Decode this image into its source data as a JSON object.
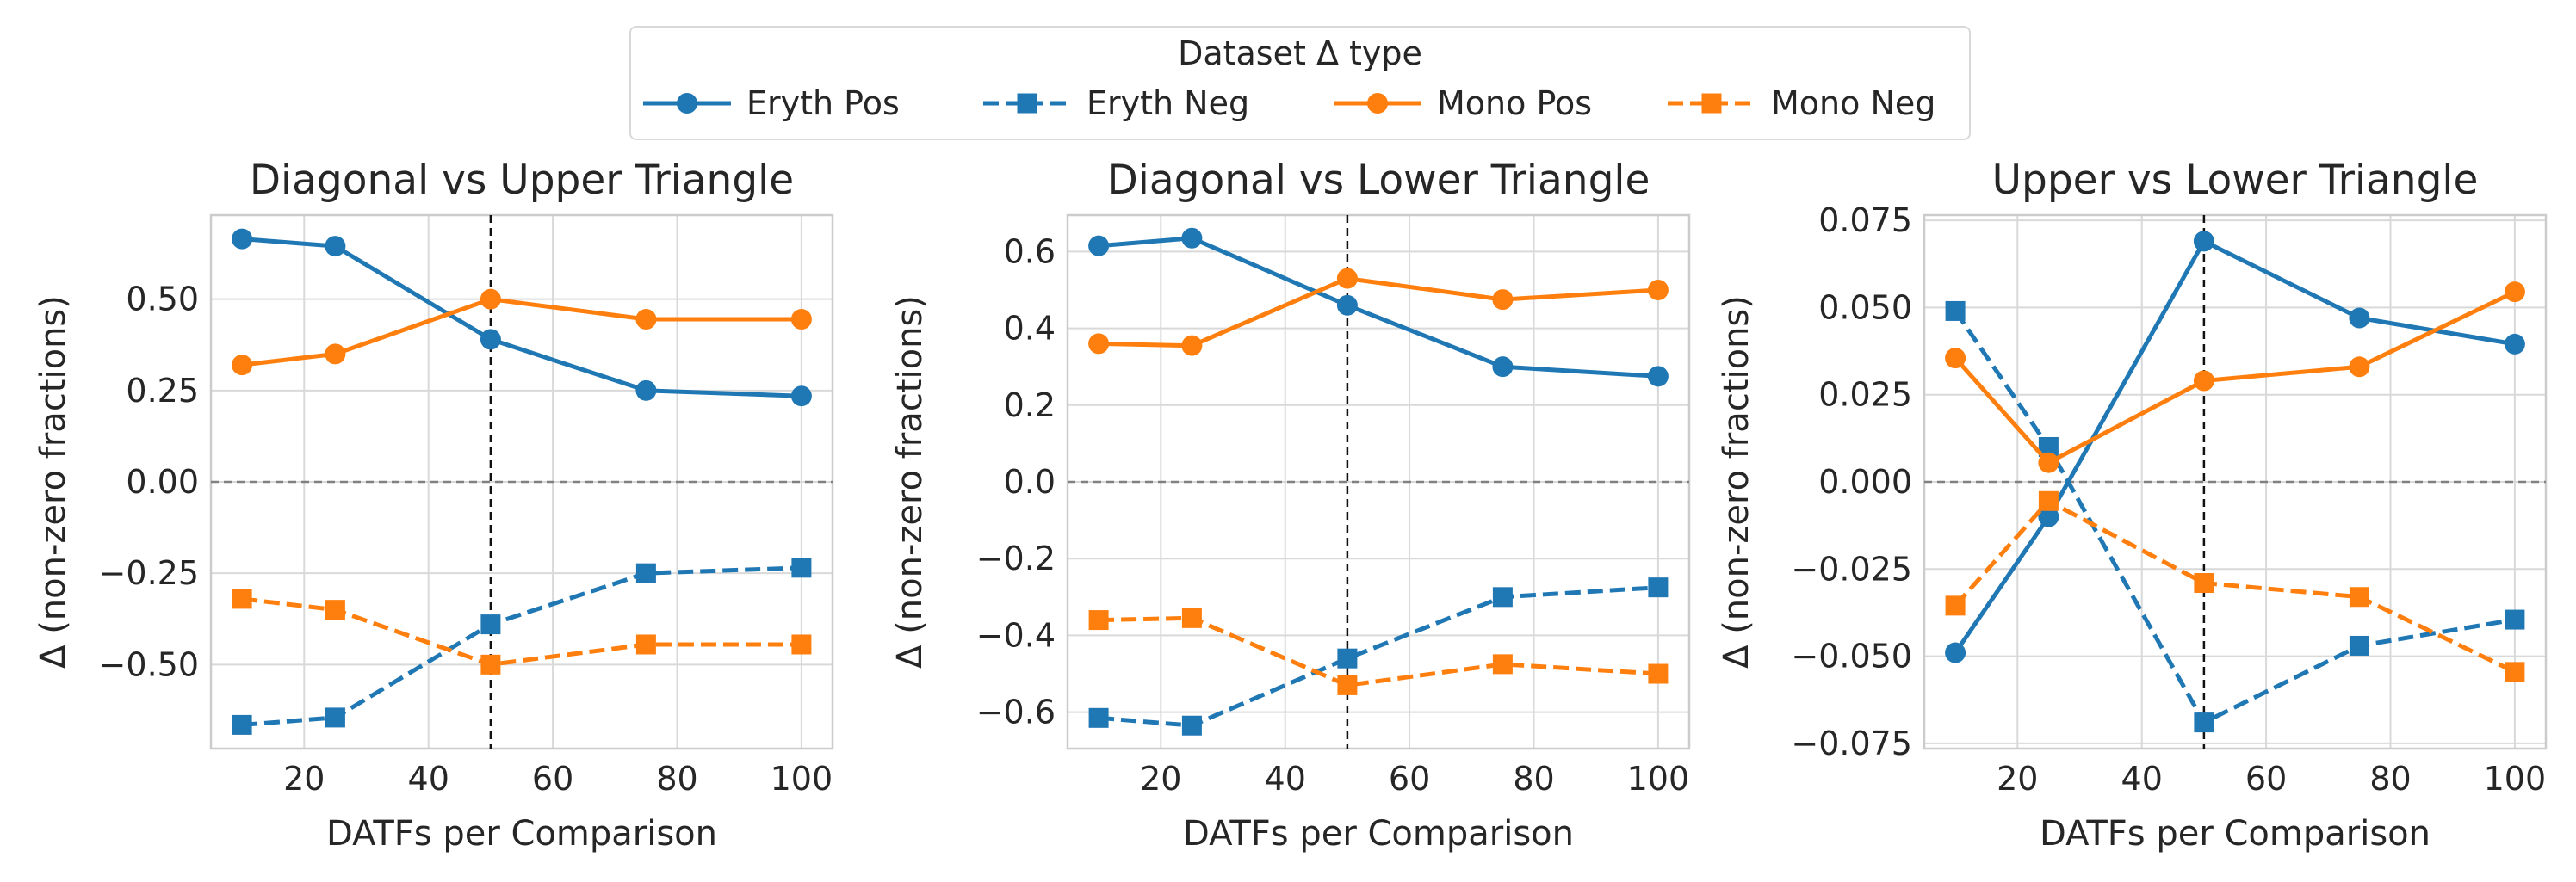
{
  "legend": {
    "title": "Dataset Δ type",
    "entries": [
      {
        "label": "Eryth Pos",
        "color": "#1f77b4",
        "marker": "circle",
        "dash": "solid"
      },
      {
        "label": "Eryth Neg",
        "color": "#1f77b4",
        "marker": "square",
        "dash": "dashed"
      },
      {
        "label": "Mono Pos",
        "color": "#ff7f0e",
        "marker": "circle",
        "dash": "solid"
      },
      {
        "label": "Mono Neg",
        "color": "#ff7f0e",
        "marker": "square",
        "dash": "dashed"
      }
    ]
  },
  "chart_data": [
    {
      "type": "line",
      "title": "Diagonal vs Upper Triangle",
      "xlabel": "DATFs per Comparison",
      "ylabel": "Δ (non-zero fractions)",
      "x": [
        10,
        25,
        50,
        75,
        100
      ],
      "xlim": [
        5,
        105
      ],
      "ylim": [
        -0.73,
        0.73
      ],
      "xticks": [
        20,
        40,
        60,
        80,
        100
      ],
      "yticks": [
        -0.5,
        -0.25,
        0.0,
        0.25,
        0.5
      ],
      "yticklabels": [
        "−0.50",
        "−0.25",
        "0.00",
        "0.25",
        "0.50"
      ],
      "vline_x": 50,
      "hline_y": 0,
      "grid": true,
      "series": [
        {
          "name": "Eryth Pos",
          "values": [
            0.665,
            0.645,
            0.39,
            0.25,
            0.235
          ]
        },
        {
          "name": "Eryth Neg",
          "values": [
            -0.665,
            -0.645,
            -0.39,
            -0.25,
            -0.235
          ]
        },
        {
          "name": "Mono Pos",
          "values": [
            0.32,
            0.35,
            0.5,
            0.445,
            0.445
          ]
        },
        {
          "name": "Mono Neg",
          "values": [
            -0.32,
            -0.35,
            -0.5,
            -0.445,
            -0.445
          ]
        }
      ]
    },
    {
      "type": "line",
      "title": "Diagonal vs Lower Triangle",
      "xlabel": "DATFs per Comparison",
      "ylabel": "Δ (non-zero fractions)",
      "x": [
        10,
        25,
        50,
        75,
        100
      ],
      "xlim": [
        5,
        105
      ],
      "ylim": [
        -0.695,
        0.695
      ],
      "xticks": [
        20,
        40,
        60,
        80,
        100
      ],
      "yticks": [
        -0.6,
        -0.4,
        -0.2,
        0.0,
        0.2,
        0.4,
        0.6
      ],
      "yticklabels": [
        "−0.6",
        "−0.4",
        "−0.2",
        "0.0",
        "0.2",
        "0.4",
        "0.6"
      ],
      "vline_x": 50,
      "hline_y": 0,
      "grid": true,
      "series": [
        {
          "name": "Eryth Pos",
          "values": [
            0.615,
            0.635,
            0.46,
            0.3,
            0.275
          ]
        },
        {
          "name": "Eryth Neg",
          "values": [
            -0.615,
            -0.635,
            -0.46,
            -0.3,
            -0.275
          ]
        },
        {
          "name": "Mono Pos",
          "values": [
            0.36,
            0.355,
            0.53,
            0.475,
            0.5
          ]
        },
        {
          "name": "Mono Neg",
          "values": [
            -0.36,
            -0.355,
            -0.53,
            -0.475,
            -0.5
          ]
        }
      ]
    },
    {
      "type": "line",
      "title": "Upper vs Lower Triangle",
      "xlabel": "DATFs per Comparison",
      "ylabel": "Δ (non-zero fractions)",
      "x": [
        10,
        25,
        50,
        75,
        100
      ],
      "xlim": [
        5,
        105
      ],
      "ylim": [
        -0.0765,
        0.0765
      ],
      "xticks": [
        20,
        40,
        60,
        80,
        100
      ],
      "yticks": [
        -0.075,
        -0.05,
        -0.025,
        0.0,
        0.025,
        0.05,
        0.075
      ],
      "yticklabels": [
        "−0.075",
        "−0.050",
        "−0.025",
        "0.000",
        "0.025",
        "0.050",
        "0.075"
      ],
      "vline_x": 50,
      "hline_y": 0,
      "grid": true,
      "series": [
        {
          "name": "Eryth Pos",
          "values": [
            -0.049,
            -0.01,
            0.069,
            0.047,
            0.0395
          ]
        },
        {
          "name": "Eryth Neg",
          "values": [
            0.049,
            0.01,
            -0.069,
            -0.047,
            -0.0395
          ]
        },
        {
          "name": "Mono Pos",
          "values": [
            0.0355,
            0.0055,
            0.029,
            0.033,
            0.0545
          ]
        },
        {
          "name": "Mono Neg",
          "values": [
            -0.0355,
            -0.0055,
            -0.029,
            -0.033,
            -0.0545
          ]
        }
      ]
    }
  ]
}
